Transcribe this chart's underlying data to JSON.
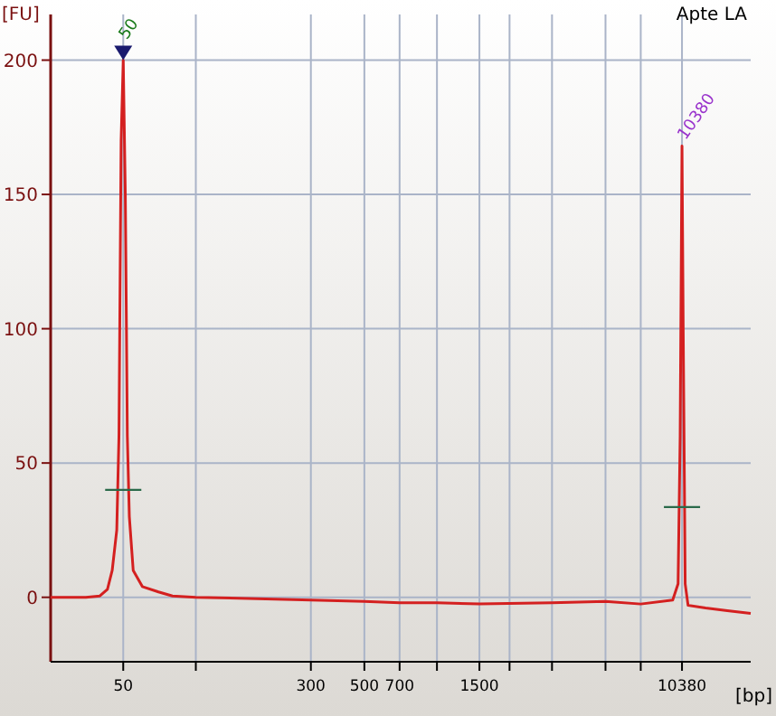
{
  "chart_data": {
    "type": "line",
    "title": "Apte LA",
    "xlabel": "[bp]",
    "ylabel": "[FU]",
    "log": "x",
    "grid": true,
    "marker": "none",
    "line_style": "solid",
    "xlim": [
      25,
      20000
    ],
    "ylim": [
      -24,
      217
    ],
    "xticks": [
      50,
      {
        "value": 100,
        "label": null
      },
      300,
      500,
      700,
      {
        "value": 1000,
        "label": null
      },
      1500,
      {
        "value": 2000,
        "label": null
      },
      {
        "value": 3000,
        "label": null
      },
      {
        "value": 5000,
        "label": null
      },
      {
        "value": 7000,
        "label": null
      },
      10380
    ],
    "yticks": [
      0,
      50,
      100,
      150,
      200
    ],
    "series": [
      {
        "color": "#d42020",
        "x": [
          25,
          35,
          40,
          43,
          45,
          47,
          48,
          49,
          50,
          51,
          52,
          53,
          55,
          60,
          70,
          80,
          100,
          300,
          500,
          700,
          1000,
          1500,
          3000,
          5000,
          7000,
          9500,
          10000,
          10200,
          10380,
          10500,
          10700,
          11000,
          13000,
          16000,
          20000
        ],
        "values": [
          0,
          0,
          0.5,
          3,
          10,
          25,
          60,
          170,
          200,
          150,
          60,
          30,
          10,
          4,
          2,
          0.5,
          0,
          -1,
          -1.5,
          -2,
          -2,
          -2.5,
          -2,
          -1.5,
          -2.5,
          -1,
          5,
          60,
          168,
          100,
          5,
          -3,
          -4,
          -5,
          -6
        ]
      }
    ],
    "annotations": [
      {
        "text": "50",
        "x": 50,
        "y": 200
      },
      {
        "text": "10380",
        "x": 10380,
        "y": 168
      }
    ]
  }
}
